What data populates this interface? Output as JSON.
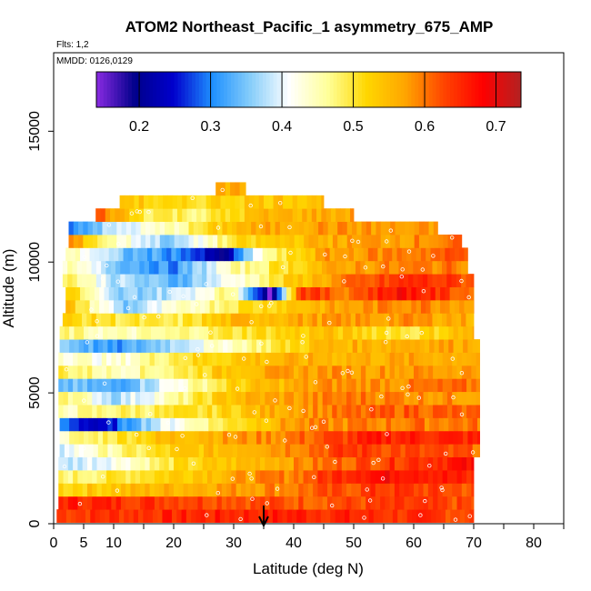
{
  "chart_data": {
    "type": "heatmap",
    "title": "ATOM2 Northeast_Pacific_1 asymmetry_675_AMP",
    "flights_label": "Flts: 1,2",
    "date_label": "MMDD: 0126,0129",
    "xlabel": "Latitude (deg N)",
    "ylabel": "Altitude (m)",
    "xlim": [
      0,
      85
    ],
    "ylim": [
      0,
      18000
    ],
    "x_ticks": [
      0,
      5,
      10,
      20,
      30,
      40,
      50,
      60,
      70,
      80
    ],
    "y_ticks": [
      0,
      5000,
      10000,
      15000
    ],
    "colorbar": {
      "min": 0.14,
      "max": 0.735,
      "ticks": [
        0.2,
        0.3,
        0.4,
        0.5,
        0.6,
        0.7
      ],
      "tick_labels": [
        "0.2",
        "0.3",
        "0.4",
        "0.5",
        "0.6",
        "0.7"
      ],
      "colors": [
        "#8a2be2",
        "#00008b",
        "#0000cd",
        "#1e90ff",
        "#87cefa",
        "#ffffff",
        "#ffff99",
        "#ffd700",
        "#ffa500",
        "#ff4500",
        "#ff0000",
        "#b22222"
      ]
    },
    "marker_latitude": 35,
    "layers": [
      {
        "alt": 300,
        "lat_min": 0.5,
        "lat_max": 70,
        "v": [
          [
            0,
            0.64
          ],
          [
            20,
            0.65
          ],
          [
            40,
            0.66
          ],
          [
            60,
            0.64
          ],
          [
            70,
            0.63
          ]
        ]
      },
      {
        "alt": 800,
        "lat_min": 0.8,
        "lat_max": 70,
        "v": [
          [
            0,
            0.66
          ],
          [
            20,
            0.64
          ],
          [
            40,
            0.62
          ],
          [
            60,
            0.63
          ],
          [
            70,
            0.62
          ]
        ]
      },
      {
        "alt": 1300,
        "lat_min": 0.8,
        "lat_max": 70,
        "v": [
          [
            0,
            0.52
          ],
          [
            15,
            0.55
          ],
          [
            25,
            0.57
          ],
          [
            40,
            0.6
          ],
          [
            55,
            0.64
          ],
          [
            70,
            0.62
          ]
        ]
      },
      {
        "alt": 1800,
        "lat_min": 0.8,
        "lat_max": 70,
        "v": [
          [
            0,
            0.47
          ],
          [
            12,
            0.5
          ],
          [
            25,
            0.55
          ],
          [
            40,
            0.6
          ],
          [
            50,
            0.67
          ],
          [
            60,
            0.68
          ],
          [
            70,
            0.64
          ]
        ]
      },
      {
        "alt": 2300,
        "lat_min": 0.8,
        "lat_max": 70,
        "v": [
          [
            0,
            0.37
          ],
          [
            10,
            0.42
          ],
          [
            20,
            0.5
          ],
          [
            35,
            0.56
          ],
          [
            50,
            0.62
          ],
          [
            60,
            0.65
          ],
          [
            70,
            0.67
          ]
        ]
      },
      {
        "alt": 2800,
        "lat_min": 1,
        "lat_max": 71,
        "v": [
          [
            0,
            0.38
          ],
          [
            8,
            0.45
          ],
          [
            20,
            0.52
          ],
          [
            35,
            0.58
          ],
          [
            50,
            0.64
          ],
          [
            62,
            0.62
          ],
          [
            71,
            0.61
          ]
        ]
      },
      {
        "alt": 3300,
        "lat_min": 1,
        "lat_max": 71,
        "v": [
          [
            0,
            0.44
          ],
          [
            10,
            0.5
          ],
          [
            20,
            0.55
          ],
          [
            40,
            0.6
          ],
          [
            55,
            0.66
          ],
          [
            71,
            0.65
          ]
        ]
      },
      {
        "alt": 3800,
        "lat_min": 1,
        "lat_max": 71,
        "v": [
          [
            0,
            0.32
          ],
          [
            8,
            0.22
          ],
          [
            14,
            0.35
          ],
          [
            25,
            0.47
          ],
          [
            40,
            0.58
          ],
          [
            60,
            0.6
          ],
          [
            71,
            0.6
          ]
        ]
      },
      {
        "alt": 4300,
        "lat_min": 0.8,
        "lat_max": 71,
        "v": [
          [
            0,
            0.44
          ],
          [
            10,
            0.48
          ],
          [
            25,
            0.5
          ],
          [
            40,
            0.58
          ],
          [
            60,
            0.62
          ],
          [
            71,
            0.6
          ]
        ]
      },
      {
        "alt": 4800,
        "lat_min": 0.8,
        "lat_max": 71,
        "v": [
          [
            0,
            0.52
          ],
          [
            10,
            0.37
          ],
          [
            20,
            0.45
          ],
          [
            30,
            0.55
          ],
          [
            50,
            0.6
          ],
          [
            71,
            0.58
          ]
        ]
      },
      {
        "alt": 5300,
        "lat_min": 0.8,
        "lat_max": 71,
        "v": [
          [
            0,
            0.35
          ],
          [
            10,
            0.32
          ],
          [
            20,
            0.42
          ],
          [
            30,
            0.52
          ],
          [
            45,
            0.58
          ],
          [
            71,
            0.6
          ]
        ]
      },
      {
        "alt": 5800,
        "lat_min": 0.8,
        "lat_max": 71,
        "v": [
          [
            0,
            0.5
          ],
          [
            10,
            0.45
          ],
          [
            20,
            0.48
          ],
          [
            30,
            0.55
          ],
          [
            45,
            0.58
          ],
          [
            71,
            0.58
          ]
        ]
      },
      {
        "alt": 6300,
        "lat_min": 0.8,
        "lat_max": 71,
        "v": [
          [
            0,
            0.45
          ],
          [
            10,
            0.42
          ],
          [
            20,
            0.5
          ],
          [
            35,
            0.55
          ],
          [
            50,
            0.56
          ],
          [
            71,
            0.57
          ]
        ]
      },
      {
        "alt": 6800,
        "lat_min": 1,
        "lat_max": 71,
        "v": [
          [
            0,
            0.38
          ],
          [
            10,
            0.3
          ],
          [
            20,
            0.38
          ],
          [
            30,
            0.45
          ],
          [
            45,
            0.55
          ],
          [
            60,
            0.57
          ],
          [
            71,
            0.57
          ]
        ]
      },
      {
        "alt": 7300,
        "lat_min": 1,
        "lat_max": 70,
        "v": [
          [
            0,
            0.48
          ],
          [
            10,
            0.44
          ],
          [
            20,
            0.46
          ],
          [
            30,
            0.5
          ],
          [
            45,
            0.54
          ],
          [
            60,
            0.5
          ],
          [
            70,
            0.56
          ]
        ]
      },
      {
        "alt": 7800,
        "lat_min": 1.5,
        "lat_max": 70,
        "v": [
          [
            0,
            0.52
          ],
          [
            10,
            0.5
          ],
          [
            20,
            0.48
          ],
          [
            30,
            0.55
          ],
          [
            45,
            0.57
          ],
          [
            60,
            0.58
          ],
          [
            70,
            0.56
          ]
        ]
      },
      {
        "alt": 8300,
        "lat_min": 2,
        "lat_max": 70,
        "v": [
          [
            2,
            0.55
          ],
          [
            12,
            0.35
          ],
          [
            20,
            0.42
          ],
          [
            30,
            0.5
          ],
          [
            45,
            0.56
          ],
          [
            60,
            0.6
          ],
          [
            70,
            0.58
          ]
        ]
      },
      {
        "alt": 8800,
        "lat_min": 2,
        "lat_max": 70,
        "v": [
          [
            2,
            0.55
          ],
          [
            10,
            0.35
          ],
          [
            20,
            0.38
          ],
          [
            30,
            0.48
          ],
          [
            36,
            0.15
          ],
          [
            41,
            0.65
          ],
          [
            48,
            0.6
          ],
          [
            58,
            0.68
          ],
          [
            70,
            0.6
          ]
        ]
      },
      {
        "alt": 9300,
        "lat_min": 1.5,
        "lat_max": 70,
        "v": [
          [
            2,
            0.5
          ],
          [
            10,
            0.38
          ],
          [
            20,
            0.33
          ],
          [
            30,
            0.42
          ],
          [
            40,
            0.53
          ],
          [
            50,
            0.6
          ],
          [
            60,
            0.65
          ],
          [
            70,
            0.62
          ]
        ]
      },
      {
        "alt": 9800,
        "lat_min": 1.5,
        "lat_max": 69,
        "v": [
          [
            2,
            0.45
          ],
          [
            10,
            0.36
          ],
          [
            20,
            0.3
          ],
          [
            30,
            0.45
          ],
          [
            40,
            0.52
          ],
          [
            50,
            0.58
          ],
          [
            69,
            0.6
          ]
        ]
      },
      {
        "alt": 10300,
        "lat_min": 2,
        "lat_max": 69,
        "v": [
          [
            2,
            0.46
          ],
          [
            12,
            0.34
          ],
          [
            22,
            0.3
          ],
          [
            28,
            0.18
          ],
          [
            35,
            0.45
          ],
          [
            45,
            0.57
          ],
          [
            69,
            0.62
          ]
        ]
      },
      {
        "alt": 10800,
        "lat_min": 2.5,
        "lat_max": 68,
        "v": [
          [
            2,
            0.6
          ],
          [
            10,
            0.45
          ],
          [
            20,
            0.35
          ],
          [
            30,
            0.5
          ],
          [
            45,
            0.56
          ],
          [
            68,
            0.6
          ]
        ]
      },
      {
        "alt": 11300,
        "lat_min": 2.5,
        "lat_max": 64,
        "v": [
          [
            2,
            0.3
          ],
          [
            10,
            0.38
          ],
          [
            20,
            0.45
          ],
          [
            30,
            0.55
          ],
          [
            45,
            0.58
          ],
          [
            64,
            0.57
          ]
        ]
      },
      {
        "alt": 11800,
        "lat_min": 7,
        "lat_max": 50,
        "v": [
          [
            7,
            0.62
          ],
          [
            15,
            0.5
          ],
          [
            25,
            0.48
          ],
          [
            35,
            0.55
          ],
          [
            50,
            0.57
          ]
        ]
      },
      {
        "alt": 12300,
        "lat_min": 11,
        "lat_max": 45,
        "v": [
          [
            11,
            0.55
          ],
          [
            20,
            0.5
          ],
          [
            30,
            0.53
          ],
          [
            45,
            0.55
          ]
        ]
      },
      {
        "alt": 12800,
        "lat_min": 27,
        "lat_max": 32,
        "v": [
          [
            27,
            0.55
          ],
          [
            32,
            0.56
          ]
        ]
      }
    ]
  }
}
